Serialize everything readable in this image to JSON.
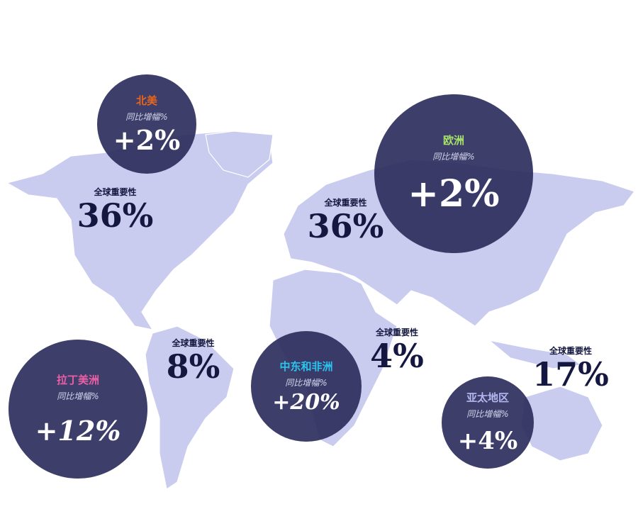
{
  "colors": {
    "map": "#c9cbef",
    "circle": "#2d2e5c",
    "value_text": "#14173f"
  },
  "regions": [
    {
      "name": "北美",
      "color": "#e8651c",
      "sub": "同比增幅%",
      "growth": "+2%"
    },
    {
      "name": "欧洲",
      "color": "#a6e36b",
      "sub": "同比增幅%",
      "growth": "+2%"
    },
    {
      "name": "拉丁美洲",
      "color": "#ec5fa4",
      "sub": "同比增幅%",
      "growth": "+12%"
    },
    {
      "name": "中东和非洲",
      "color": "#2bc4ef",
      "sub": "同比增幅%",
      "growth": "+20%"
    },
    {
      "name": "亚太地区",
      "color": "#b4b7f0",
      "sub": "同比增幅%",
      "growth": "+4%"
    }
  ],
  "importance": [
    {
      "label": "全球重要性",
      "value": "36%"
    },
    {
      "label": "全球重要性",
      "value": "36%"
    },
    {
      "label": "全球重要性",
      "value": "8%"
    },
    {
      "label": "全球重要性",
      "value": "4%"
    },
    {
      "label": "全球重要性",
      "value": "17%"
    }
  ]
}
